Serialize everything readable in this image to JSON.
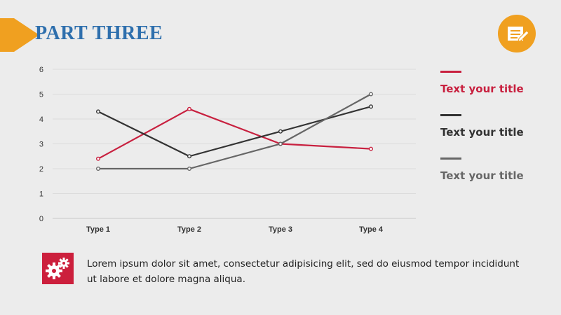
{
  "header": {
    "title": "PART THREE",
    "accent_color": "#f0a020",
    "title_color": "#2e6fad",
    "corner_icon": "document-pen-icon"
  },
  "chart_data": {
    "type": "line",
    "categories": [
      "Type 1",
      "Type 2",
      "Type 3",
      "Type 4"
    ],
    "ylim": [
      0,
      6
    ],
    "yticks": [
      "0",
      "1",
      "2",
      "3",
      "4",
      "5",
      "6"
    ],
    "grid": true,
    "legend_position": "right",
    "series": [
      {
        "name": "Text your title",
        "color": "#c8203f",
        "values": [
          2.4,
          4.4,
          3.0,
          2.8
        ]
      },
      {
        "name": "Text your title",
        "color": "#333333",
        "values": [
          4.3,
          2.5,
          3.5,
          4.5
        ]
      },
      {
        "name": "Text your title",
        "color": "#666666",
        "values": [
          2.0,
          2.0,
          3.0,
          5.0
        ]
      }
    ]
  },
  "footer": {
    "icon": "gears-icon",
    "icon_bg": "#cc1f3c",
    "text": "Lorem ipsum dolor sit amet, consectetur adipisicing elit, sed do eiusmod tempor incididunt ut labore et dolore magna aliqua."
  }
}
